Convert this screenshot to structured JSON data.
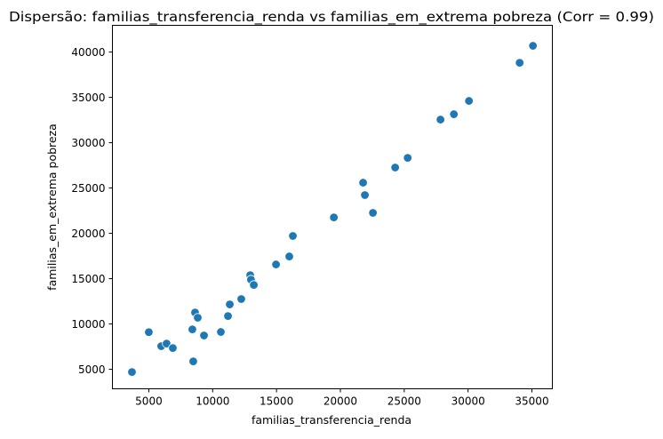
{
  "chart_data": {
    "type": "scatter",
    "title": "Dispersão: familias_transferencia_renda vs familias_em_extrema pobreza (Corr = 0.99)",
    "xlabel": "familias_transferencia_renda",
    "ylabel": "familias_em_extrema pobreza",
    "xlim": [
      2150,
      36600
    ],
    "ylim": [
      2850,
      42950
    ],
    "xticks": [
      5000,
      10000,
      15000,
      20000,
      25000,
      30000,
      35000
    ],
    "yticks": [
      5000,
      10000,
      15000,
      20000,
      25000,
      30000,
      35000,
      40000
    ],
    "grid": false,
    "marker_color": "#1f77b4",
    "points": [
      {
        "x": 3680,
        "y": 4700
      },
      {
        "x": 5000,
        "y": 9100
      },
      {
        "x": 5970,
        "y": 7550
      },
      {
        "x": 6390,
        "y": 7840
      },
      {
        "x": 6880,
        "y": 7350
      },
      {
        "x": 8410,
        "y": 9410
      },
      {
        "x": 8480,
        "y": 5880
      },
      {
        "x": 8620,
        "y": 11270
      },
      {
        "x": 8830,
        "y": 10690
      },
      {
        "x": 9320,
        "y": 8730
      },
      {
        "x": 10640,
        "y": 9120
      },
      {
        "x": 11200,
        "y": 10880
      },
      {
        "x": 11340,
        "y": 12160
      },
      {
        "x": 12240,
        "y": 12750
      },
      {
        "x": 12940,
        "y": 15390
      },
      {
        "x": 13000,
        "y": 14900
      },
      {
        "x": 13220,
        "y": 14310
      },
      {
        "x": 14960,
        "y": 16570
      },
      {
        "x": 16000,
        "y": 17450
      },
      {
        "x": 16280,
        "y": 19710
      },
      {
        "x": 19490,
        "y": 21760
      },
      {
        "x": 21780,
        "y": 25590
      },
      {
        "x": 21920,
        "y": 24220
      },
      {
        "x": 22550,
        "y": 22260
      },
      {
        "x": 24290,
        "y": 27260
      },
      {
        "x": 25270,
        "y": 28330
      },
      {
        "x": 27840,
        "y": 32550
      },
      {
        "x": 28890,
        "y": 33140
      },
      {
        "x": 30070,
        "y": 34610
      },
      {
        "x": 34040,
        "y": 38820
      },
      {
        "x": 35080,
        "y": 40690
      }
    ]
  }
}
